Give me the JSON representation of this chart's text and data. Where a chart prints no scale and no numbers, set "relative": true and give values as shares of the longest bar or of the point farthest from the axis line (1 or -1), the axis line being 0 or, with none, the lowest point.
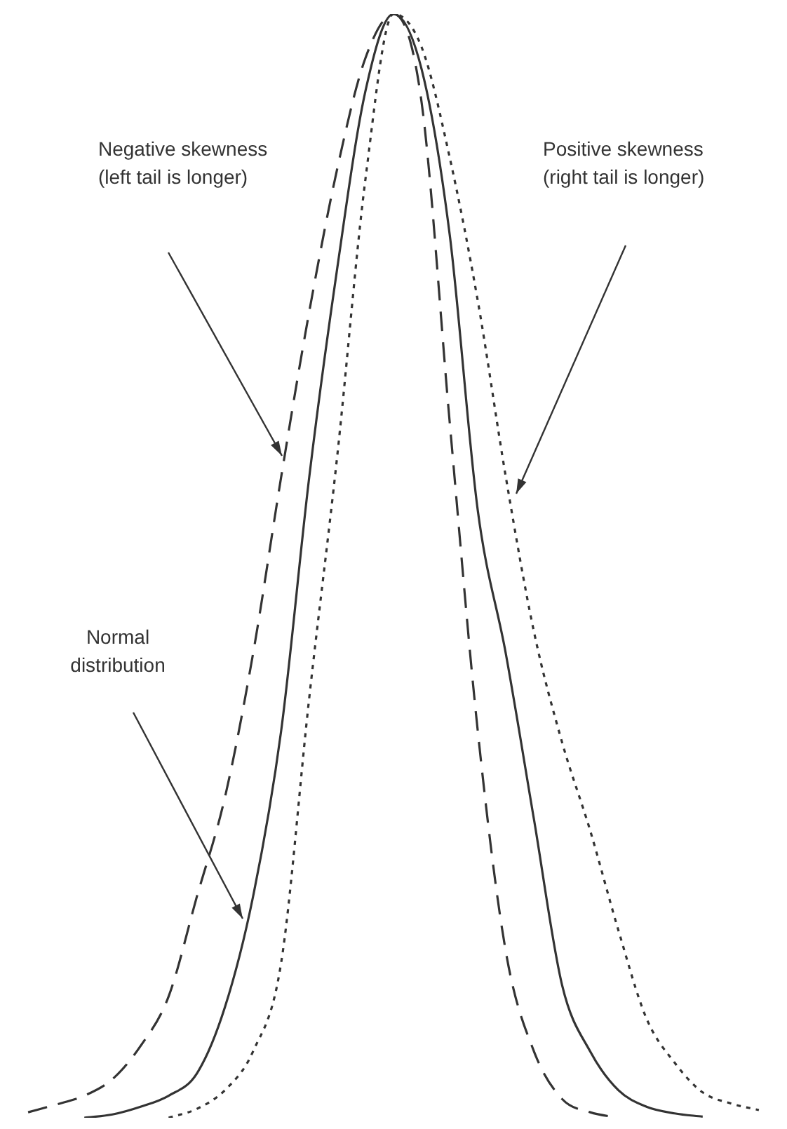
{
  "chart_data": {
    "type": "line",
    "relative": true,
    "legend": false,
    "grid": false,
    "tick_labels": false,
    "marker": "none",
    "annotations": [
      "Normal\ndistribution",
      "Negative skewness\n(left tail is longer)",
      "Positive skewness\n(right tail is longer)"
    ],
    "categories": [
      null,
      null,
      null,
      null,
      null,
      null,
      null,
      null,
      null,
      null,
      null,
      null,
      null,
      null,
      null,
      null,
      null,
      null,
      null,
      null,
      null,
      null,
      null,
      null,
      null,
      null,
      null,
      null,
      null
    ],
    "series": [
      {
        "color": "#333333",
        "line_style": "solid",
        "values": [
          null,
          null,
          null,
          0.0,
          0.003,
          0.01,
          0.02,
          0.04,
          0.1,
          0.2,
          0.35,
          0.58,
          0.77,
          0.93,
          1.0,
          0.95,
          0.8,
          0.55,
          0.42,
          0.27,
          0.12,
          0.06,
          0.025,
          0.01,
          0.004,
          0.001,
          null,
          null,
          null
        ]
      },
      {
        "color": "#333333",
        "line_style": "dashed",
        "values": [
          null,
          0.005,
          0.012,
          0.02,
          0.035,
          0.065,
          0.11,
          0.2,
          0.29,
          0.42,
          0.58,
          0.73,
          0.86,
          0.96,
          1.0,
          0.92,
          0.63,
          0.35,
          0.15,
          0.06,
          0.017,
          0.005,
          0.0,
          null,
          null,
          null,
          null,
          null,
          null
        ]
      },
      {
        "color": "#333333",
        "line_style": "dotted",
        "values": [
          null,
          null,
          null,
          null,
          null,
          null,
          0.0,
          0.008,
          0.025,
          0.06,
          0.14,
          0.38,
          0.6,
          0.85,
          1.0,
          0.97,
          0.87,
          0.74,
          0.58,
          0.44,
          0.34,
          0.26,
          0.17,
          0.09,
          0.05,
          0.023,
          0.013,
          0.007,
          null
        ]
      }
    ]
  }
}
